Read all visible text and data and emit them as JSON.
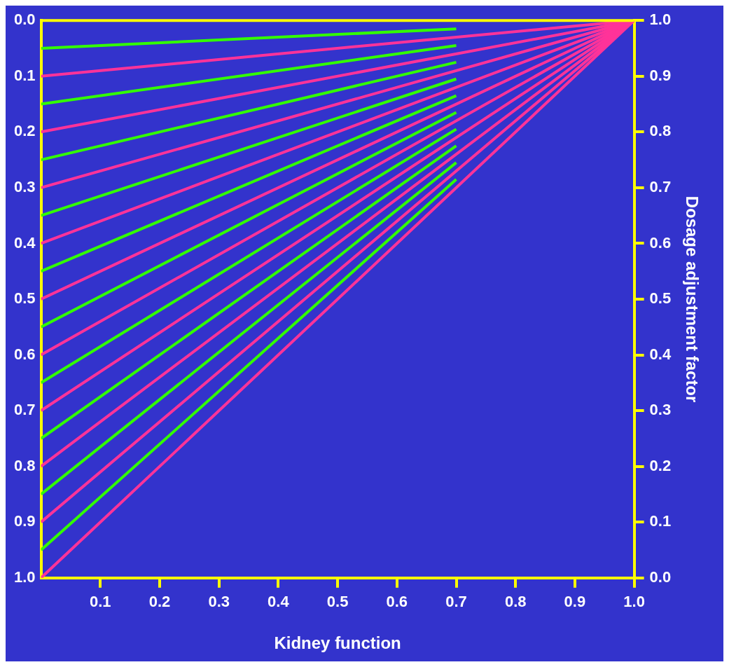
{
  "chart_data": {
    "type": "line",
    "xlabel": "Kidney function",
    "y2label": "Dosage adjustment factor",
    "xlim": [
      0,
      1
    ],
    "xticks": [
      0.1,
      0.2,
      0.3,
      0.4,
      0.5,
      0.6,
      0.7,
      0.8,
      0.9,
      {
        "value": 1,
        "label": "1.0"
      }
    ],
    "ylim": [
      1,
      0
    ],
    "yticks": [
      {
        "value": 0,
        "label": "0.0"
      },
      0.1,
      0.2,
      0.3,
      0.4,
      0.5,
      0.6,
      0.7,
      0.8,
      0.9,
      {
        "value": 1,
        "label": "1.0"
      }
    ],
    "y2lim": [
      0,
      1
    ],
    "y2ticks": [
      {
        "value": 0,
        "label": "0.0"
      },
      0.1,
      0.2,
      0.3,
      0.4,
      0.5,
      0.6,
      0.7,
      0.8,
      0.9,
      {
        "value": 1,
        "label": "1.0"
      }
    ],
    "grid": false,
    "legend": false,
    "series": [
      {
        "type": "line",
        "axis": "y2",
        "color": "#ff3399",
        "x": [
          0,
          1
        ],
        "values": [
          0.9,
          1
        ]
      },
      {
        "type": "line",
        "axis": "y2",
        "color": "#ff3399",
        "x": [
          0,
          1
        ],
        "values": [
          0.8,
          1
        ]
      },
      {
        "type": "line",
        "axis": "y2",
        "color": "#ff3399",
        "x": [
          0,
          1
        ],
        "values": [
          0.7,
          1
        ]
      },
      {
        "type": "line",
        "axis": "y2",
        "color": "#ff3399",
        "x": [
          0,
          1
        ],
        "values": [
          0.6,
          1
        ]
      },
      {
        "type": "line",
        "axis": "y2",
        "color": "#ff3399",
        "x": [
          0,
          1
        ],
        "values": [
          0.5,
          1
        ]
      },
      {
        "type": "line",
        "axis": "y2",
        "color": "#ff3399",
        "x": [
          0,
          1
        ],
        "values": [
          0.4,
          1
        ]
      },
      {
        "type": "line",
        "axis": "y2",
        "color": "#ff3399",
        "x": [
          0,
          1
        ],
        "values": [
          0.3,
          1
        ]
      },
      {
        "type": "line",
        "axis": "y2",
        "color": "#ff3399",
        "x": [
          0,
          1
        ],
        "values": [
          0.2,
          1
        ]
      },
      {
        "type": "line",
        "axis": "y2",
        "color": "#ff3399",
        "x": [
          0,
          1
        ],
        "values": [
          0.1,
          1
        ]
      },
      {
        "type": "line",
        "axis": "y2",
        "color": "#ff3399",
        "x": [
          0,
          1
        ],
        "values": [
          0,
          1
        ]
      },
      {
        "type": "line",
        "axis": "y2",
        "color": "#33ff00",
        "x": [
          0,
          0.7
        ],
        "values": [
          0.95,
          0.985
        ]
      },
      {
        "type": "line",
        "axis": "y2",
        "color": "#33ff00",
        "x": [
          0,
          0.7
        ],
        "values": [
          0.85,
          0.955
        ]
      },
      {
        "type": "line",
        "axis": "y2",
        "color": "#33ff00",
        "x": [
          0,
          0.7
        ],
        "values": [
          0.75,
          0.925
        ]
      },
      {
        "type": "line",
        "axis": "y2",
        "color": "#33ff00",
        "x": [
          0,
          0.7
        ],
        "values": [
          0.65,
          0.895
        ]
      },
      {
        "type": "line",
        "axis": "y2",
        "color": "#33ff00",
        "x": [
          0,
          0.7
        ],
        "values": [
          0.55,
          0.865
        ]
      },
      {
        "type": "line",
        "axis": "y2",
        "color": "#33ff00",
        "x": [
          0,
          0.7
        ],
        "values": [
          0.45,
          0.835
        ]
      },
      {
        "type": "line",
        "axis": "y2",
        "color": "#33ff00",
        "x": [
          0,
          0.7
        ],
        "values": [
          0.35,
          0.805
        ]
      },
      {
        "type": "line",
        "axis": "y2",
        "color": "#33ff00",
        "x": [
          0,
          0.7
        ],
        "values": [
          0.25,
          0.775
        ]
      },
      {
        "type": "line",
        "axis": "y2",
        "color": "#33ff00",
        "x": [
          0,
          0.7
        ],
        "values": [
          0.15,
          0.745
        ]
      },
      {
        "type": "line",
        "axis": "y2",
        "color": "#33ff00",
        "x": [
          0,
          0.7
        ],
        "values": [
          0.05,
          0.715
        ]
      }
    ]
  }
}
